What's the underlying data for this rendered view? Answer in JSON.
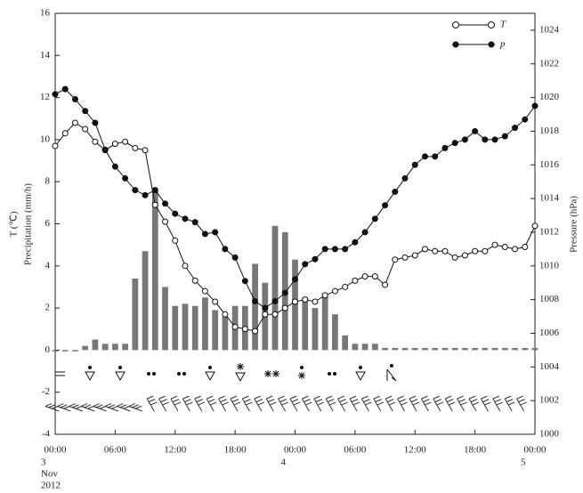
{
  "chart_data": {
    "type": "combo",
    "ylabel_t": "T (℃)",
    "ylabel_p": "Precipitation (mm/h)",
    "y2label": "Pressure (hPa)",
    "xlim": [
      0,
      48
    ],
    "xticks": [
      {
        "value": 0,
        "label": "00:00"
      },
      {
        "value": 6,
        "label": "06:00"
      },
      {
        "value": 12,
        "label": "12:00"
      },
      {
        "value": 18,
        "label": "18:00"
      },
      {
        "value": 24,
        "label": "00:00"
      },
      {
        "value": 30,
        "label": "06:00"
      },
      {
        "value": 36,
        "label": "12:00"
      },
      {
        "value": 42,
        "label": "18:00"
      },
      {
        "value": 48,
        "label": "00:00"
      }
    ],
    "date_labels": [
      {
        "x": 0,
        "lines": [
          "3",
          "Nov",
          "2012"
        ]
      },
      {
        "x": 24,
        "lines": [
          "4"
        ]
      },
      {
        "x": 48,
        "lines": [
          "5"
        ]
      }
    ],
    "ylim": [
      -4,
      16
    ],
    "yticks": [
      -4,
      -2,
      0,
      2,
      4,
      6,
      8,
      10,
      12,
      14,
      16
    ],
    "y2lim": [
      1000,
      1025
    ],
    "y2ticks": [
      1000,
      1002,
      1004,
      1006,
      1008,
      1010,
      1012,
      1014,
      1016,
      1018,
      1020,
      1022,
      1024
    ],
    "x": [
      0,
      1,
      2,
      3,
      4,
      5,
      6,
      7,
      8,
      9,
      10,
      11,
      12,
      13,
      14,
      15,
      16,
      17,
      18,
      19,
      20,
      21,
      22,
      23,
      24,
      25,
      26,
      27,
      28,
      29,
      30,
      31,
      32,
      33,
      34,
      35,
      36,
      37,
      38,
      39,
      40,
      41,
      42,
      43,
      44,
      45,
      46,
      47,
      48
    ],
    "series": [
      {
        "name": "T",
        "type": "line",
        "marker": "open",
        "color": "#111",
        "values": [
          9.7,
          10.3,
          10.8,
          10.5,
          9.9,
          9.5,
          9.8,
          9.9,
          9.6,
          9.5,
          6.9,
          6.1,
          5.2,
          4.0,
          3.3,
          2.8,
          2.3,
          1.7,
          1.1,
          1.0,
          0.9,
          1.7,
          1.7,
          2.0,
          2.3,
          2.4,
          2.3,
          2.6,
          2.8,
          3.0,
          3.3,
          3.5,
          3.5,
          3.1,
          4.3,
          4.4,
          4.5,
          4.8,
          4.7,
          4.7,
          4.4,
          4.5,
          4.7,
          4.7,
          5.0,
          4.9,
          4.8,
          4.9,
          5.9
        ]
      },
      {
        "name": "p",
        "type": "line",
        "marker": "filled",
        "color": "#111",
        "axis": "y2",
        "values": [
          1020.2,
          1020.5,
          1019.9,
          1019.2,
          1018.5,
          1016.9,
          1015.9,
          1015.2,
          1014.5,
          1014.2,
          1014.5,
          1013.7,
          1013.1,
          1012.8,
          1012.6,
          1011.9,
          1012.0,
          1011.0,
          1010.5,
          1009.1,
          1007.9,
          1007.5,
          1007.9,
          1008.4,
          1009.2,
          1010.1,
          1010.4,
          1011.0,
          1011.0,
          1011.0,
          1011.4,
          1012.0,
          1012.8,
          1013.6,
          1014.4,
          1015.2,
          1016.0,
          1016.5,
          1016.5,
          1017.0,
          1017.3,
          1017.5,
          1018.0,
          1017.5,
          1017.5,
          1017.7,
          1018.2,
          1018.7,
          1019.5
        ]
      }
    ],
    "precipitation": {
      "color": "#777",
      "values": [
        0,
        0,
        0,
        0.2,
        0.5,
        0.3,
        0.3,
        0.3,
        3.4,
        4.7,
        7.6,
        3.0,
        2.1,
        2.2,
        2.1,
        2.5,
        1.9,
        1.6,
        2.1,
        2.1,
        4.1,
        3.2,
        5.9,
        5.6,
        4.3,
        2.5,
        2.0,
        2.6,
        1.7,
        0.7,
        0.3,
        0.3,
        0.3,
        0.1,
        0.1,
        0.1,
        0.1,
        0.1,
        0.1,
        0.1,
        0.1,
        0.1,
        0.1,
        0.1,
        0.1,
        0.1,
        0.1,
        0.1,
        0.1
      ]
    }
  }
}
